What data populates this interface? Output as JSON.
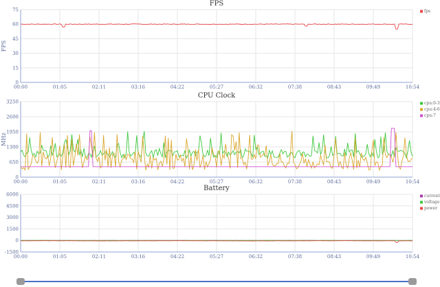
{
  "chart_data": [
    {
      "type": "line",
      "title": "FPS",
      "ylabel": "FPS",
      "ylim": [
        0,
        75
      ],
      "yticks": [
        "0",
        "15",
        "30",
        "45",
        "60",
        "75"
      ],
      "x": [
        "00:00",
        "01:05",
        "02:11",
        "03:16",
        "04:22",
        "05:27",
        "06:32",
        "07:38",
        "08:43",
        "09:49",
        "10:54"
      ],
      "series": [
        {
          "name": "fps",
          "color": "#e8474a",
          "values": [
            60,
            60,
            60,
            60,
            60,
            60,
            60,
            60,
            60,
            60,
            60
          ],
          "dips": [
            [
              0.11,
              57
            ],
            [
              0.73,
              58
            ],
            [
              0.96,
              55
            ]
          ]
        }
      ],
      "legend": "top-right"
    },
    {
      "type": "line",
      "title": "CPU Clock",
      "ylabel": "MHz",
      "ylim": [
        0,
        3250
      ],
      "yticks": [
        "0",
        "650",
        "1300",
        "1950",
        "2600",
        "3250"
      ],
      "x": [
        "00:00",
        "01:05",
        "02:11",
        "03:16",
        "04:22",
        "05:27",
        "06:32",
        "07:38",
        "08:43",
        "09:49",
        "10:54"
      ],
      "series": [
        {
          "name": "cpu:0-3",
          "color": "#3cc83c",
          "base": 1000,
          "high": 2000
        },
        {
          "name": "cpu:4-6",
          "color": "#d9a62b",
          "base": 700,
          "high": 2000
        },
        {
          "name": "cpu:7",
          "color": "#d04fd0",
          "base": 450,
          "spikes": [
            [
              0.18,
              2000
            ],
            [
              0.95,
              2100
            ]
          ]
        }
      ],
      "legend": "top-right"
    },
    {
      "type": "line",
      "title": "Battery",
      "ylabel": "",
      "ylim": [
        -1500,
        6000
      ],
      "yticks": [
        "-1500",
        "0",
        "1500",
        "3000",
        "4500",
        "6000"
      ],
      "x": [
        "00:00",
        "01:05",
        "02:11",
        "03:16",
        "04:22",
        "05:27",
        "06:32",
        "07:38",
        "08:43",
        "09:49",
        "10:54"
      ],
      "series": [
        {
          "name": "current",
          "color": "#b03ab0",
          "values": [
            0,
            0,
            0,
            0,
            0,
            0,
            0,
            0,
            0,
            0,
            0
          ]
        },
        {
          "name": "voltage",
          "color": "#3cc83c",
          "values": [
            0,
            0,
            0,
            0,
            0,
            0,
            0,
            0,
            0,
            0,
            0
          ]
        },
        {
          "name": "power",
          "color": "#e8474a",
          "values": [
            -50,
            -40,
            -60,
            -50,
            -40,
            -50,
            -60,
            -50,
            -40,
            -50,
            -50
          ],
          "dips": [
            [
              0.96,
              -250
            ]
          ]
        }
      ],
      "legend": "top-right"
    }
  ],
  "scroll": {
    "start": 0,
    "end": 1
  }
}
